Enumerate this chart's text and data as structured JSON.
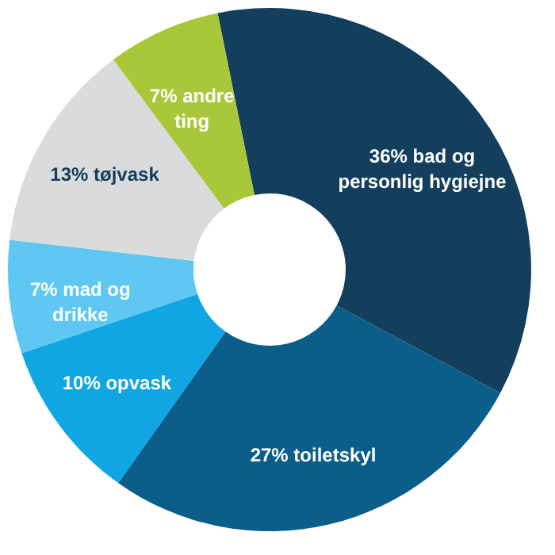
{
  "chart_data": {
    "type": "donut",
    "categories": [
      "36% bad og personlig hygiejne",
      "27% toiletskyl",
      "10% opvask",
      "7% mad og drikke",
      "13% tøjvask",
      "7% andre ting"
    ],
    "values": [
      36,
      27,
      10,
      7,
      13,
      7
    ],
    "colors": [
      "#133e5c",
      "#0b5e8a",
      "#10a5e3",
      "#5ec8f2",
      "#dadbdc",
      "#a8c83a"
    ],
    "legend": false
  }
}
